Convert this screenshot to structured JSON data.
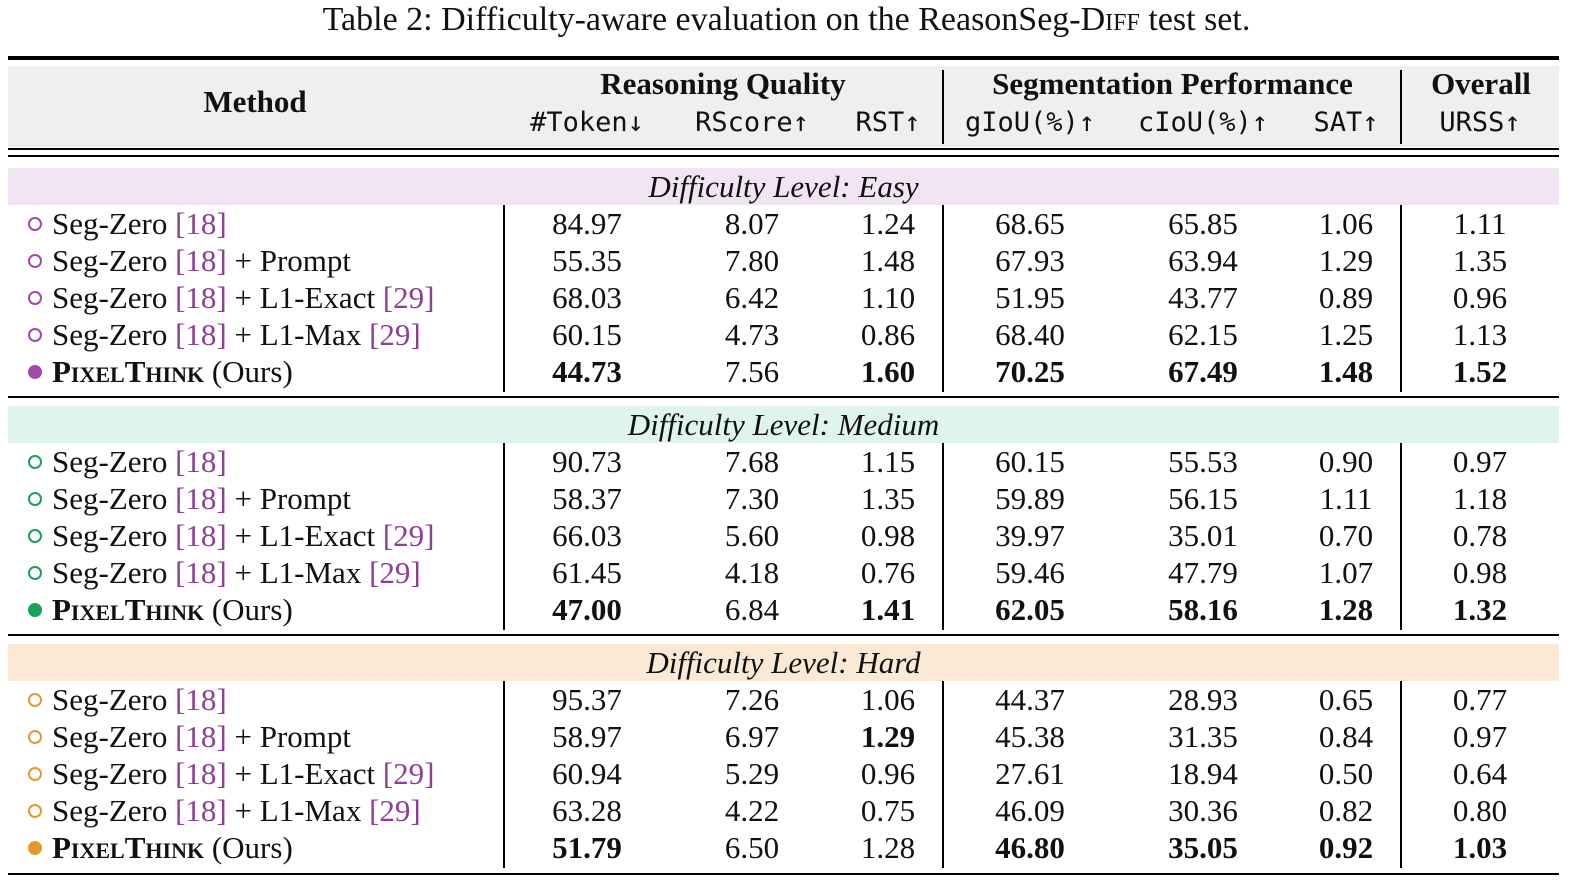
{
  "caption": {
    "prefix": "Table 2: Difficulty-aware evaluation on the ReasonSeg-D",
    "sc": "iff",
    "suffix": " test set."
  },
  "header": {
    "method": "Method",
    "groups": [
      "Reasoning Quality",
      "Segmentation Performance",
      "Overall"
    ],
    "columns": [
      "#Token↓",
      "RScore↑",
      "RST↑",
      "gIoU(%)↑",
      "cIoU(%)↑",
      "SAT↑",
      "URSS↑"
    ]
  },
  "colors": {
    "easy_band": "#f2e5f3",
    "medium_band": "#dff4ea",
    "hard_band": "#fbe9d6",
    "easy_marker": "#a24aa8",
    "medium_marker": "#1aa05a",
    "hard_marker": "#e39a2c",
    "reference": "#8e3f95"
  },
  "sections": [
    {
      "label": "Difficulty Level: Easy",
      "rows": [
        {
          "name": "Seg-Zero",
          "ref": "[18]",
          "extra": "",
          "extra_ref": "",
          "ours": false,
          "values": [
            "84.97",
            "8.07",
            "1.24",
            "68.65",
            "65.85",
            "1.06",
            "1.11"
          ],
          "bold": [
            false,
            false,
            false,
            false,
            false,
            false,
            false
          ]
        },
        {
          "name": "Seg-Zero",
          "ref": "[18]",
          "extra": " + Prompt",
          "extra_ref": "",
          "ours": false,
          "values": [
            "55.35",
            "7.80",
            "1.48",
            "67.93",
            "63.94",
            "1.29",
            "1.35"
          ],
          "bold": [
            false,
            false,
            false,
            false,
            false,
            false,
            false
          ]
        },
        {
          "name": "Seg-Zero",
          "ref": "[18]",
          "extra": " + L1-Exact ",
          "extra_ref": "[29]",
          "ours": false,
          "values": [
            "68.03",
            "6.42",
            "1.10",
            "51.95",
            "43.77",
            "0.89",
            "0.96"
          ],
          "bold": [
            false,
            false,
            false,
            false,
            false,
            false,
            false
          ]
        },
        {
          "name": "Seg-Zero",
          "ref": "[18]",
          "extra": " + L1-Max ",
          "extra_ref": "[29]",
          "ours": false,
          "values": [
            "60.15",
            "4.73",
            "0.86",
            "68.40",
            "62.15",
            "1.25",
            "1.13"
          ],
          "bold": [
            false,
            false,
            false,
            false,
            false,
            false,
            false
          ]
        },
        {
          "name": "PixelThink",
          "ref": "",
          "extra": " (Ours)",
          "extra_ref": "",
          "ours": true,
          "values": [
            "44.73",
            "7.56",
            "1.60",
            "70.25",
            "67.49",
            "1.48",
            "1.52"
          ],
          "bold": [
            true,
            false,
            true,
            true,
            true,
            true,
            true
          ]
        }
      ]
    },
    {
      "label": "Difficulty Level: Medium",
      "rows": [
        {
          "name": "Seg-Zero",
          "ref": "[18]",
          "extra": "",
          "extra_ref": "",
          "ours": false,
          "values": [
            "90.73",
            "7.68",
            "1.15",
            "60.15",
            "55.53",
            "0.90",
            "0.97"
          ],
          "bold": [
            false,
            false,
            false,
            false,
            false,
            false,
            false
          ]
        },
        {
          "name": "Seg-Zero",
          "ref": "[18]",
          "extra": " + Prompt",
          "extra_ref": "",
          "ours": false,
          "values": [
            "58.37",
            "7.30",
            "1.35",
            "59.89",
            "56.15",
            "1.11",
            "1.18"
          ],
          "bold": [
            false,
            false,
            false,
            false,
            false,
            false,
            false
          ]
        },
        {
          "name": "Seg-Zero",
          "ref": "[18]",
          "extra": " + L1-Exact ",
          "extra_ref": "[29]",
          "ours": false,
          "values": [
            "66.03",
            "5.60",
            "0.98",
            "39.97",
            "35.01",
            "0.70",
            "0.78"
          ],
          "bold": [
            false,
            false,
            false,
            false,
            false,
            false,
            false
          ]
        },
        {
          "name": "Seg-Zero",
          "ref": "[18]",
          "extra": " + L1-Max ",
          "extra_ref": "[29]",
          "ours": false,
          "values": [
            "61.45",
            "4.18",
            "0.76",
            "59.46",
            "47.79",
            "1.07",
            "0.98"
          ],
          "bold": [
            false,
            false,
            false,
            false,
            false,
            false,
            false
          ]
        },
        {
          "name": "PixelThink",
          "ref": "",
          "extra": " (Ours)",
          "extra_ref": "",
          "ours": true,
          "values": [
            "47.00",
            "6.84",
            "1.41",
            "62.05",
            "58.16",
            "1.28",
            "1.32"
          ],
          "bold": [
            true,
            false,
            true,
            true,
            true,
            true,
            true
          ]
        }
      ]
    },
    {
      "label": "Difficulty Level: Hard",
      "rows": [
        {
          "name": "Seg-Zero",
          "ref": "[18]",
          "extra": "",
          "extra_ref": "",
          "ours": false,
          "values": [
            "95.37",
            "7.26",
            "1.06",
            "44.37",
            "28.93",
            "0.65",
            "0.77"
          ],
          "bold": [
            false,
            false,
            false,
            false,
            false,
            false,
            false
          ]
        },
        {
          "name": "Seg-Zero",
          "ref": "[18]",
          "extra": " + Prompt",
          "extra_ref": "",
          "ours": false,
          "values": [
            "58.97",
            "6.97",
            "1.29",
            "45.38",
            "31.35",
            "0.84",
            "0.97"
          ],
          "bold": [
            false,
            false,
            true,
            false,
            false,
            false,
            false
          ]
        },
        {
          "name": "Seg-Zero",
          "ref": "[18]",
          "extra": " + L1-Exact ",
          "extra_ref": "[29]",
          "ours": false,
          "values": [
            "60.94",
            "5.29",
            "0.96",
            "27.61",
            "18.94",
            "0.50",
            "0.64"
          ],
          "bold": [
            false,
            false,
            false,
            false,
            false,
            false,
            false
          ]
        },
        {
          "name": "Seg-Zero",
          "ref": "[18]",
          "extra": " + L1-Max ",
          "extra_ref": "[29]",
          "ours": false,
          "values": [
            "63.28",
            "4.22",
            "0.75",
            "46.09",
            "30.36",
            "0.82",
            "0.80"
          ],
          "bold": [
            false,
            false,
            false,
            false,
            false,
            false,
            false
          ]
        },
        {
          "name": "PixelThink",
          "ref": "",
          "extra": " (Ours)",
          "extra_ref": "",
          "ours": true,
          "values": [
            "51.79",
            "6.50",
            "1.28",
            "46.80",
            "35.05",
            "0.92",
            "1.03"
          ],
          "bold": [
            true,
            false,
            false,
            true,
            true,
            true,
            true
          ]
        }
      ]
    }
  ]
}
